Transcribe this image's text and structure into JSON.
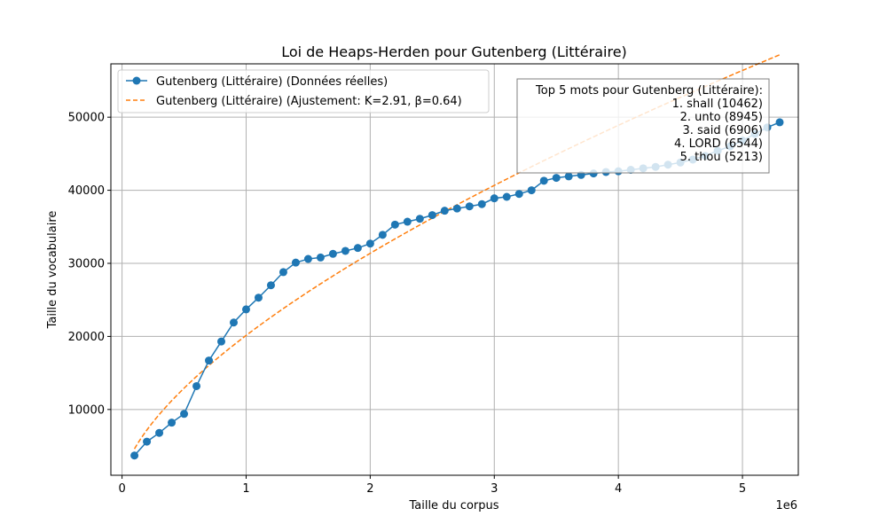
{
  "chart_data": {
    "type": "line",
    "title": "Loi de Heaps-Herden pour Gutenberg (Littéraire)",
    "xlabel": "Taille du corpus",
    "ylabel": "Taille du vocabulaire",
    "x_offset_label": "1e6",
    "xlim": [
      -0.09,
      5.45
    ],
    "ylim": [
      1000,
      57300
    ],
    "x_ticks": [
      0,
      1,
      2,
      3,
      4,
      5
    ],
    "y_ticks": [
      10000,
      20000,
      30000,
      40000,
      50000
    ],
    "x_tick_labels": [
      "0",
      "1",
      "2",
      "3",
      "4",
      "5"
    ],
    "y_tick_labels": [
      "10000",
      "20000",
      "30000",
      "40000",
      "50000"
    ],
    "grid": true,
    "legend_position": "upper left",
    "series": [
      {
        "name": "Gutenberg (Littéraire) (Données réelles)",
        "style": "line-with-markers",
        "color": "#1f77b4",
        "x": [
          0.1,
          0.2,
          0.3,
          0.4,
          0.5,
          0.6,
          0.7,
          0.8,
          0.9,
          1.0,
          1.1,
          1.2,
          1.3,
          1.4,
          1.5,
          1.6,
          1.7,
          1.8,
          1.9,
          2.0,
          2.1,
          2.2,
          2.3,
          2.4,
          2.5,
          2.6,
          2.7,
          2.8,
          2.9,
          3.0,
          3.1,
          3.2,
          3.3,
          3.4,
          3.5,
          3.6,
          3.7,
          3.8,
          3.9,
          4.0,
          4.1,
          4.2,
          4.3,
          4.4,
          4.5,
          4.6,
          4.7,
          4.8,
          4.9,
          5.0,
          5.1,
          5.2,
          5.3
        ],
        "y": [
          3700,
          5600,
          6800,
          8200,
          9400,
          13200,
          16700,
          19300,
          21900,
          23700,
          25300,
          27000,
          28800,
          30100,
          30600,
          30800,
          31300,
          31700,
          32100,
          32700,
          33900,
          35300,
          35700,
          36100,
          36600,
          37200,
          37500,
          37800,
          38100,
          38900,
          39100,
          39500,
          40000,
          41300,
          41700,
          41900,
          42100,
          42300,
          42500,
          42600,
          42800,
          43000,
          43200,
          43500,
          43800,
          44200,
          44700,
          45400,
          46000,
          46800,
          47700,
          48600,
          49300
        ]
      },
      {
        "name": "Gutenberg (Littéraire) (Ajustement: K=2.91, β=0.64)",
        "style": "dashed",
        "color": "#ff7f0e",
        "K": 2.91,
        "beta": 0.64,
        "x_range": [
          0.1,
          5.3
        ]
      }
    ],
    "annotation": {
      "lines": [
        "Top 5 mots pour Gutenberg (Littéraire):",
        "1. shall (10462)",
        "2. unto (8945)",
        "3. said (6906)",
        "4. LORD (6544)",
        "5. thou (5213)"
      ],
      "position": "upper right"
    }
  }
}
